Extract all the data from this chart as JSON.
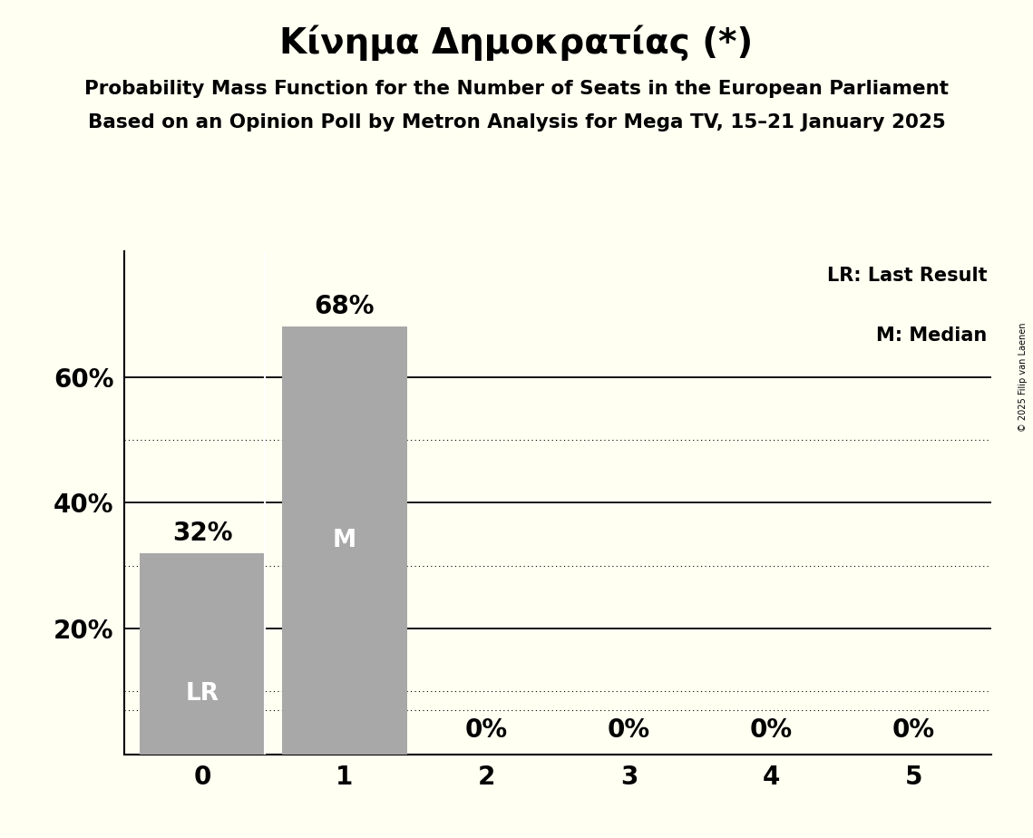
{
  "title": "Κίνημα Δημοκρατίας (*)",
  "subtitle1": "Probability Mass Function for the Number of Seats in the European Parliament",
  "subtitle2": "Based on an Opinion Poll by Metron Analysis for Mega TV, 15–21 January 2025",
  "copyright": "© 2025 Filip van Laenen",
  "categories": [
    0,
    1,
    2,
    3,
    4,
    5
  ],
  "values": [
    0.32,
    0.68,
    0.0,
    0.0,
    0.0,
    0.0
  ],
  "bar_color": "#a8a8a8",
  "bar_labels": [
    "32%",
    "68%",
    "0%",
    "0%",
    "0%",
    "0%"
  ],
  "lr_bar": 0,
  "median_bar": 1,
  "lr_label": "LR",
  "median_label": "M",
  "legend_lr": "LR: Last Result",
  "legend_m": "M: Median",
  "background_color": "#fffff2",
  "ylabel_ticks": [
    0.0,
    0.2,
    0.4,
    0.6
  ],
  "ylabel_tick_labels": [
    "",
    "20%",
    "40%",
    "60%"
  ],
  "ylim": [
    0,
    0.8
  ],
  "solid_grid_lines": [
    0.2,
    0.4,
    0.6
  ],
  "dotted_grid_lines": [
    0.1,
    0.3,
    0.5,
    0.07
  ],
  "title_fontsize": 28,
  "subtitle_fontsize": 15.5,
  "tick_fontsize": 20,
  "inner_label_fontsize": 19,
  "bar_label_fontsize": 20,
  "legend_fontsize": 15
}
